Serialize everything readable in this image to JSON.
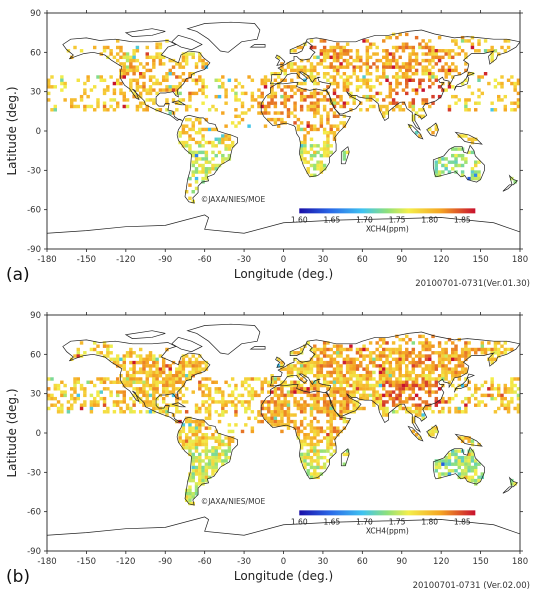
{
  "colorbar": {
    "label": "XCH4(ppm)",
    "ticks": [
      "1.60",
      "1.65",
      "1.70",
      "1.75",
      "1.80",
      "1.85"
    ],
    "range": [
      1.6,
      1.87
    ]
  },
  "axes": {
    "xlabel": "Longitude (deg.)",
    "ylabel": "Latitude (deg.)",
    "xticks": [
      "-180",
      "-150",
      "-120",
      "-90",
      "-60",
      "-30",
      "0",
      "30",
      "60",
      "90",
      "120",
      "150",
      "180"
    ],
    "yticks": [
      "90",
      "60",
      "30",
      "0",
      "-30",
      "-60",
      "-90"
    ]
  },
  "panels": [
    {
      "letter": "(a)",
      "credit": "©JAXA/NIES/MOE",
      "caption": "20100701-0731(Ver.01.30)"
    },
    {
      "letter": "(b)",
      "credit": "©JAXA/NIES/MOE",
      "caption": "20100701-0731 (Ver.02.00)"
    }
  ],
  "colors": {
    "low": "#1a0fa8",
    "mid_low": "#3fc3f0",
    "mid": "#f4ee4a",
    "mid_high": "#f5a623",
    "high": "#c8102e"
  }
}
